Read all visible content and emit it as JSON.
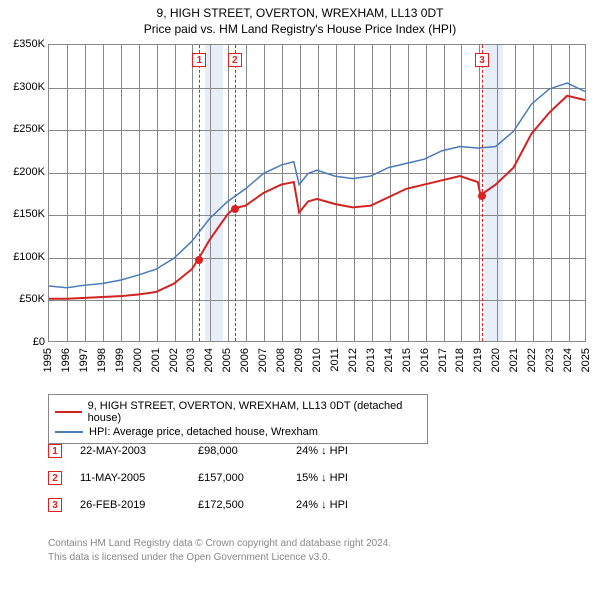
{
  "title_line1": "9, HIGH STREET, OVERTON, WREXHAM, LL13 0DT",
  "title_line2": "Price paid vs. HM Land Registry's House Price Index (HPI)",
  "chart": {
    "type": "line",
    "x_years": [
      1995,
      1996,
      1997,
      1998,
      1999,
      2000,
      2001,
      2002,
      2003,
      2004,
      2005,
      2006,
      2007,
      2008,
      2009,
      2010,
      2011,
      2012,
      2013,
      2014,
      2015,
      2016,
      2017,
      2018,
      2019,
      2020,
      2021,
      2022,
      2023,
      2024,
      2025
    ],
    "ylim": [
      0,
      350000
    ],
    "ytick_step": 50000,
    "yticklabels": [
      "£0",
      "£50K",
      "£100K",
      "£150K",
      "£200K",
      "£250K",
      "£300K",
      "£350K"
    ],
    "grid_color": "#888888",
    "background_color": "#ffffff",
    "band_color": "#e8eef7",
    "bands": [
      {
        "start": 2003.7,
        "end": 2004.7
      },
      {
        "start": 2019.3,
        "end": 2020.3
      }
    ],
    "series": [
      {
        "name": "price_paid",
        "label": "9, HIGH STREET, OVERTON, WREXHAM, LL13 0DT (detached house)",
        "color": "#d22222",
        "line_width": 2,
        "data": [
          [
            1995,
            50000
          ],
          [
            1996,
            50000
          ],
          [
            1997,
            51000
          ],
          [
            1998,
            52000
          ],
          [
            1999,
            53000
          ],
          [
            2000,
            55000
          ],
          [
            2001,
            58000
          ],
          [
            2002,
            68000
          ],
          [
            2003,
            85000
          ],
          [
            2003.39,
            98000
          ],
          [
            2004,
            120000
          ],
          [
            2005,
            150000
          ],
          [
            2005.36,
            157000
          ],
          [
            2006,
            160000
          ],
          [
            2007,
            175000
          ],
          [
            2008,
            185000
          ],
          [
            2008.7,
            188000
          ],
          [
            2009,
            152000
          ],
          [
            2009.5,
            165000
          ],
          [
            2010,
            168000
          ],
          [
            2011,
            162000
          ],
          [
            2012,
            158000
          ],
          [
            2013,
            160000
          ],
          [
            2014,
            170000
          ],
          [
            2015,
            180000
          ],
          [
            2016,
            185000
          ],
          [
            2017,
            190000
          ],
          [
            2018,
            195000
          ],
          [
            2019,
            188000
          ],
          [
            2019.15,
            172500
          ],
          [
            2020,
            185000
          ],
          [
            2021,
            205000
          ],
          [
            2022,
            245000
          ],
          [
            2023,
            270000
          ],
          [
            2024,
            290000
          ],
          [
            2025,
            285000
          ]
        ]
      },
      {
        "name": "hpi",
        "label": "HPI: Average price, detached house, Wrexham",
        "color": "#4a7ab8",
        "line_width": 1.5,
        "data": [
          [
            1995,
            65000
          ],
          [
            1996,
            63000
          ],
          [
            1997,
            66000
          ],
          [
            1998,
            68000
          ],
          [
            1999,
            72000
          ],
          [
            2000,
            78000
          ],
          [
            2001,
            85000
          ],
          [
            2002,
            98000
          ],
          [
            2003,
            118000
          ],
          [
            2004,
            145000
          ],
          [
            2005,
            165000
          ],
          [
            2006,
            180000
          ],
          [
            2007,
            198000
          ],
          [
            2008,
            208000
          ],
          [
            2008.7,
            212000
          ],
          [
            2009,
            185000
          ],
          [
            2009.5,
            198000
          ],
          [
            2010,
            202000
          ],
          [
            2011,
            195000
          ],
          [
            2012,
            192000
          ],
          [
            2013,
            195000
          ],
          [
            2014,
            205000
          ],
          [
            2015,
            210000
          ],
          [
            2016,
            215000
          ],
          [
            2017,
            225000
          ],
          [
            2018,
            230000
          ],
          [
            2019,
            228000
          ],
          [
            2020,
            230000
          ],
          [
            2021,
            248000
          ],
          [
            2022,
            280000
          ],
          [
            2023,
            298000
          ],
          [
            2024,
            305000
          ],
          [
            2025,
            295000
          ]
        ]
      }
    ],
    "markers": [
      {
        "n": "1",
        "x": 2003.39,
        "y": 98000
      },
      {
        "n": "2",
        "x": 2005.36,
        "y": 157000
      },
      {
        "n": "3",
        "x": 2019.15,
        "y": 172500
      }
    ]
  },
  "legend": {
    "rows": [
      {
        "color": "#d22222",
        "label": "9, HIGH STREET, OVERTON, WREXHAM, LL13 0DT (detached house)"
      },
      {
        "color": "#4a7ab8",
        "label": "HPI: Average price, detached house, Wrexham"
      }
    ]
  },
  "sales": [
    {
      "n": "1",
      "date": "22-MAY-2003",
      "price": "£98,000",
      "delta": "24% ↓ HPI"
    },
    {
      "n": "2",
      "date": "11-MAY-2005",
      "price": "£157,000",
      "delta": "15% ↓ HPI"
    },
    {
      "n": "3",
      "date": "26-FEB-2019",
      "price": "£172,500",
      "delta": "24% ↓ HPI"
    }
  ],
  "foot1": "Contains HM Land Registry data © Crown copyright and database right 2024.",
  "foot2": "This data is licensed under the Open Government Licence v3.0."
}
